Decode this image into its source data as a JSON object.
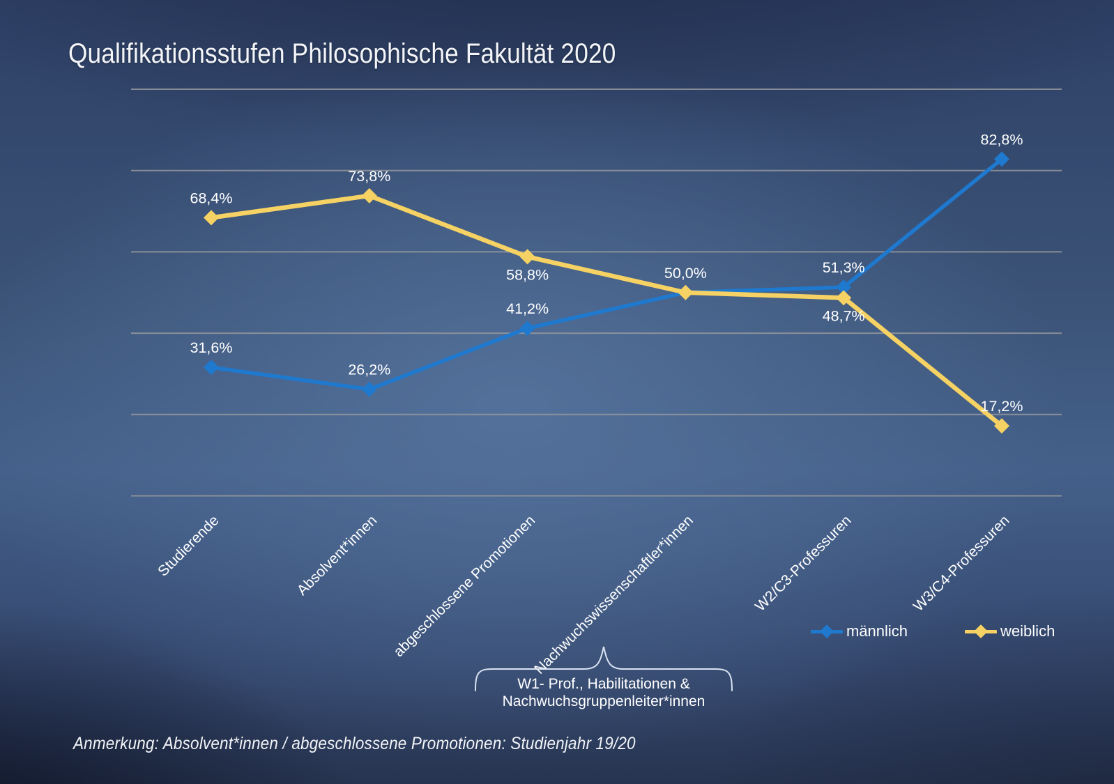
{
  "slide": {
    "title": "Qualifikationsstufen Philosophische Fakultät 2020",
    "note": "Anmerkung: Absolvent*innen / abgeschlossene Promotionen: Studienjahr 19/20"
  },
  "annotation": {
    "line1": "W1- Prof., Habilitationen &",
    "line2": "Nachwuchsgruppenleiter*innen"
  },
  "chart_data": {
    "type": "line",
    "title": "Qualifikationsstufen Philosophische Fakultät 2020",
    "categories": [
      "Studierende",
      "Absolvent*innen",
      "abgeschlossene Promotionen",
      "Nachwuchswissenschaftler*innen",
      "W2/C3-Professuren",
      "W3/C4-Professuren"
    ],
    "series": [
      {
        "name": "männlich",
        "color": "#1e79cf",
        "values": [
          31.6,
          26.2,
          41.2,
          50.0,
          51.3,
          82.8
        ],
        "labels": [
          "31,6%",
          "26,2%",
          "41,2%",
          null,
          "51,3%",
          "82,8%"
        ],
        "label_pos": [
          "above",
          "above",
          "above",
          null,
          "above",
          "above"
        ]
      },
      {
        "name": "weiblich",
        "color": "#f5d263",
        "values": [
          68.4,
          73.8,
          58.8,
          50.0,
          48.7,
          17.2
        ],
        "labels": [
          "68,4%",
          "73,8%",
          "58,8%",
          "50,0%",
          "48,7%",
          "17,2%"
        ],
        "label_pos": [
          "above",
          "above",
          "below",
          "above",
          "below",
          "above"
        ]
      }
    ],
    "ylim": [
      0,
      100
    ],
    "gridlines_pct": [
      0,
      20,
      40,
      60,
      80,
      100
    ],
    "grid": true,
    "xlabel": "",
    "ylabel": "",
    "legend_position": "bottom-right",
    "marker": "diamond"
  }
}
